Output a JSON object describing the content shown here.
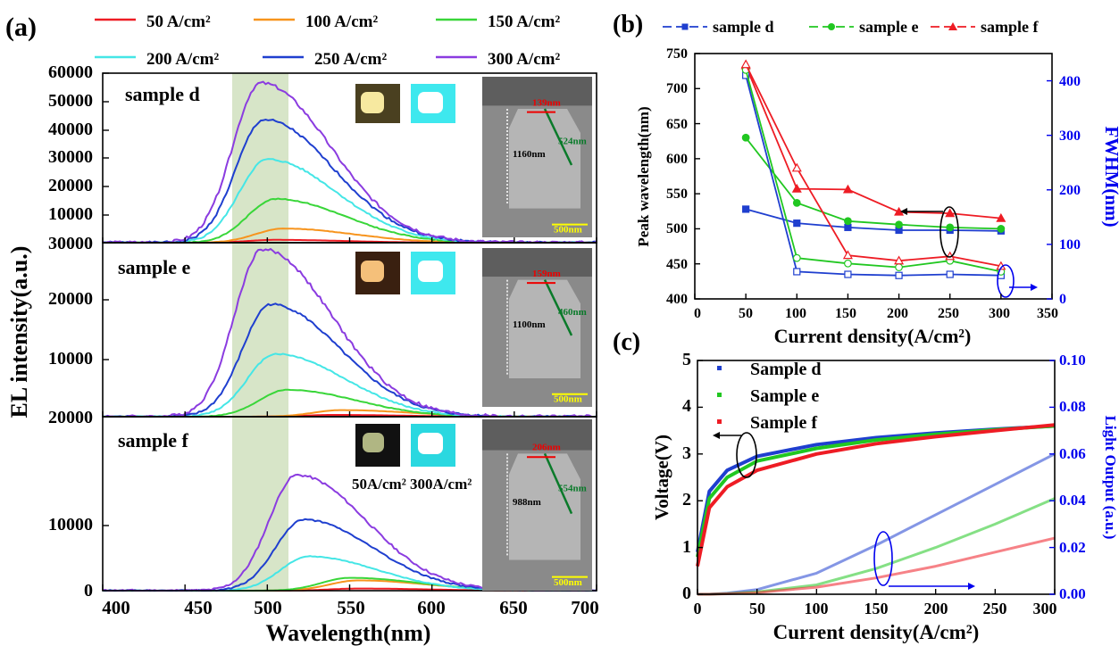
{
  "colors": {
    "c50": "#ee1c24",
    "c100": "#f7941d",
    "c150": "#39d639",
    "c200": "#45e6e6",
    "c250": "#1f3fcf",
    "c300": "#8b3ce0",
    "sample_d": "#1f3fcf",
    "sample_e": "#21c721",
    "sample_f": "#ee1c24",
    "right_axis": "#0000ee",
    "highlight": "#c9dcb6"
  },
  "panel_a": {
    "label": "(a)",
    "legend": [
      "50 A/cm²",
      "100 A/cm²",
      "150 A/cm²",
      "200 A/cm²",
      "250 A/cm²",
      "300 A/cm²"
    ],
    "xlabel": "Wavelength(nm)",
    "ylabel": "EL intensity(a.u.)",
    "x_ticks": [
      "400",
      "450",
      "500",
      "550",
      "600",
      "650",
      "700"
    ],
    "sub": [
      {
        "name": "sample d",
        "y_ticks": [
          "10000",
          "20000",
          "30000",
          "40000",
          "50000",
          "60000"
        ],
        "top_tick": "30000",
        "sem": {
          "a": "139nm",
          "b": "524nm",
          "c": "1160nm",
          "scale": "500nm"
        }
      },
      {
        "name": "sample e",
        "y_ticks": [
          "10000",
          "20000"
        ],
        "top_tick": "20000",
        "sem": {
          "a": "159nm",
          "b": "460nm",
          "c": "1100nm",
          "scale": "500nm"
        }
      },
      {
        "name": "sample f",
        "y_ticks": [
          "0",
          "10000"
        ],
        "top_tick": "",
        "sem": {
          "a": "206nm",
          "b": "554nm",
          "c": "988nm",
          "scale": "500nm"
        }
      }
    ],
    "photo_caption": "50A/cm² 300A/cm²"
  },
  "panel_b": {
    "label": "(b)",
    "legend": [
      "sample d",
      "sample e",
      "sample f"
    ],
    "xlabel": "Current density(A/cm²)",
    "ylabel": "Peak wavelength(nm)",
    "y2label": "FWHM(nm)",
    "x_ticks": [
      "0",
      "50",
      "100",
      "150",
      "200",
      "250",
      "300",
      "350"
    ],
    "y_ticks": [
      "400",
      "450",
      "500",
      "550",
      "600",
      "650",
      "700",
      "750"
    ],
    "y2_ticks": [
      "0",
      "100",
      "200",
      "300",
      "400"
    ]
  },
  "panel_c": {
    "label": "(c)",
    "legend": [
      "Sample d",
      "Sample e",
      "Sample f"
    ],
    "xlabel": "Current density(A/cm²)",
    "ylabel": "Voltage(V)",
    "y2label": "Light Output (a.u.)",
    "x_ticks": [
      "0",
      "50",
      "100",
      "150",
      "200",
      "250",
      "300"
    ],
    "y_ticks": [
      "0",
      "1",
      "2",
      "3",
      "4",
      "5"
    ],
    "y2_ticks": [
      "0.00",
      "0.02",
      "0.04",
      "0.06",
      "0.08",
      "0.10"
    ]
  },
  "chart_data": [
    {
      "type": "line",
      "title": "sample d",
      "xlabel": "Wavelength(nm)",
      "ylabel": "EL intensity(a.u.)",
      "xlim": [
        400,
        700
      ],
      "ylim": [
        0,
        60000
      ],
      "series": [
        {
          "name": "50 A/cm²",
          "peak_x": 505,
          "peak_y": 1000
        },
        {
          "name": "100 A/cm²",
          "peak_x": 510,
          "peak_y": 5000
        },
        {
          "name": "150 A/cm²",
          "peak_x": 505,
          "peak_y": 15500
        },
        {
          "name": "200 A/cm²",
          "peak_x": 500,
          "peak_y": 29500
        },
        {
          "name": "250 A/cm²",
          "peak_x": 498,
          "peak_y": 43500
        },
        {
          "name": "300 A/cm²",
          "peak_x": 496,
          "peak_y": 56500
        }
      ]
    },
    {
      "type": "line",
      "title": "sample e",
      "xlabel": "Wavelength(nm)",
      "ylabel": "EL intensity(a.u.)",
      "xlim": [
        400,
        700
      ],
      "ylim": [
        0,
        28000
      ],
      "series": [
        {
          "name": "50 A/cm²",
          "peak_x": 540,
          "peak_y": 300
        },
        {
          "name": "100 A/cm²",
          "peak_x": 545,
          "peak_y": 1100
        },
        {
          "name": "150 A/cm²",
          "peak_x": 512,
          "peak_y": 4500
        },
        {
          "name": "200 A/cm²",
          "peak_x": 505,
          "peak_y": 10500
        },
        {
          "name": "250 A/cm²",
          "peak_x": 502,
          "peak_y": 18800
        },
        {
          "name": "300 A/cm²",
          "peak_x": 497,
          "peak_y": 28000
        }
      ]
    },
    {
      "type": "line",
      "title": "sample f",
      "xlabel": "Wavelength(nm)",
      "ylabel": "EL intensity(a.u.)",
      "xlim": [
        400,
        700
      ],
      "ylim": [
        0,
        20000
      ],
      "series": [
        {
          "name": "50 A/cm²",
          "peak_x": 555,
          "peak_y": 250
        },
        {
          "name": "100 A/cm²",
          "peak_x": 555,
          "peak_y": 1200
        },
        {
          "name": "150 A/cm²",
          "peak_x": 550,
          "peak_y": 1500
        },
        {
          "name": "200 A/cm²",
          "peak_x": 525,
          "peak_y": 4000
        },
        {
          "name": "250 A/cm²",
          "peak_x": 522,
          "peak_y": 8300
        },
        {
          "name": "300 A/cm²",
          "peak_x": 518,
          "peak_y": 13500
        }
      ]
    },
    {
      "type": "line",
      "xlabel": "Current density(A/cm²)",
      "ylabel": "Peak wavelength(nm)",
      "y2label": "FWHM(nm)",
      "xlim": [
        0,
        350
      ],
      "ylim": [
        400,
        750
      ],
      "y2lim": [
        0,
        450
      ],
      "x": [
        50,
        100,
        150,
        200,
        250,
        300
      ],
      "series": [
        {
          "name": "sample d",
          "axis": "left",
          "values": [
            528,
            508,
            502,
            498,
            498,
            497
          ]
        },
        {
          "name": "sample e",
          "axis": "left",
          "values": [
            630,
            537,
            511,
            506,
            502,
            500
          ]
        },
        {
          "name": "sample f",
          "axis": "left",
          "values": [
            733,
            557,
            556,
            524,
            522,
            515
          ]
        },
        {
          "name": "sample d",
          "axis": "right",
          "values": [
            410,
            50,
            45,
            43,
            45,
            43
          ]
        },
        {
          "name": "sample e",
          "axis": "right",
          "values": [
            420,
            75,
            65,
            58,
            70,
            50
          ]
        },
        {
          "name": "sample f",
          "axis": "right",
          "values": [
            430,
            240,
            80,
            70,
            78,
            60
          ]
        }
      ]
    },
    {
      "type": "line",
      "xlabel": "Current density(A/cm²)",
      "ylabel": "Voltage(V)",
      "y2label": "Light Output (a.u.)",
      "xlim": [
        0,
        300
      ],
      "ylim": [
        0,
        5
      ],
      "y2lim": [
        0,
        0.1
      ],
      "x": [
        0,
        10,
        25,
        50,
        100,
        150,
        200,
        250,
        300
      ],
      "series": [
        {
          "name": "Sample d",
          "axis": "left",
          "values": [
            0.9,
            2.2,
            2.65,
            2.95,
            3.2,
            3.35,
            3.45,
            3.53,
            3.6
          ]
        },
        {
          "name": "Sample e",
          "axis": "left",
          "values": [
            0.8,
            2.05,
            2.5,
            2.85,
            3.12,
            3.3,
            3.42,
            3.52,
            3.6
          ]
        },
        {
          "name": "Sample f",
          "axis": "left",
          "values": [
            0.6,
            1.85,
            2.3,
            2.65,
            3.0,
            3.22,
            3.37,
            3.5,
            3.62
          ]
        },
        {
          "name": "Sample d",
          "axis": "right",
          "values": [
            0,
            0,
            0.0005,
            0.002,
            0.009,
            0.021,
            0.034,
            0.047,
            0.06
          ]
        },
        {
          "name": "Sample e",
          "axis": "right",
          "values": [
            0,
            0,
            0.0003,
            0.001,
            0.004,
            0.011,
            0.02,
            0.03,
            0.041
          ]
        },
        {
          "name": "Sample f",
          "axis": "right",
          "values": [
            0,
            0,
            0.0002,
            0.0007,
            0.003,
            0.007,
            0.012,
            0.018,
            0.024
          ]
        }
      ]
    }
  ]
}
